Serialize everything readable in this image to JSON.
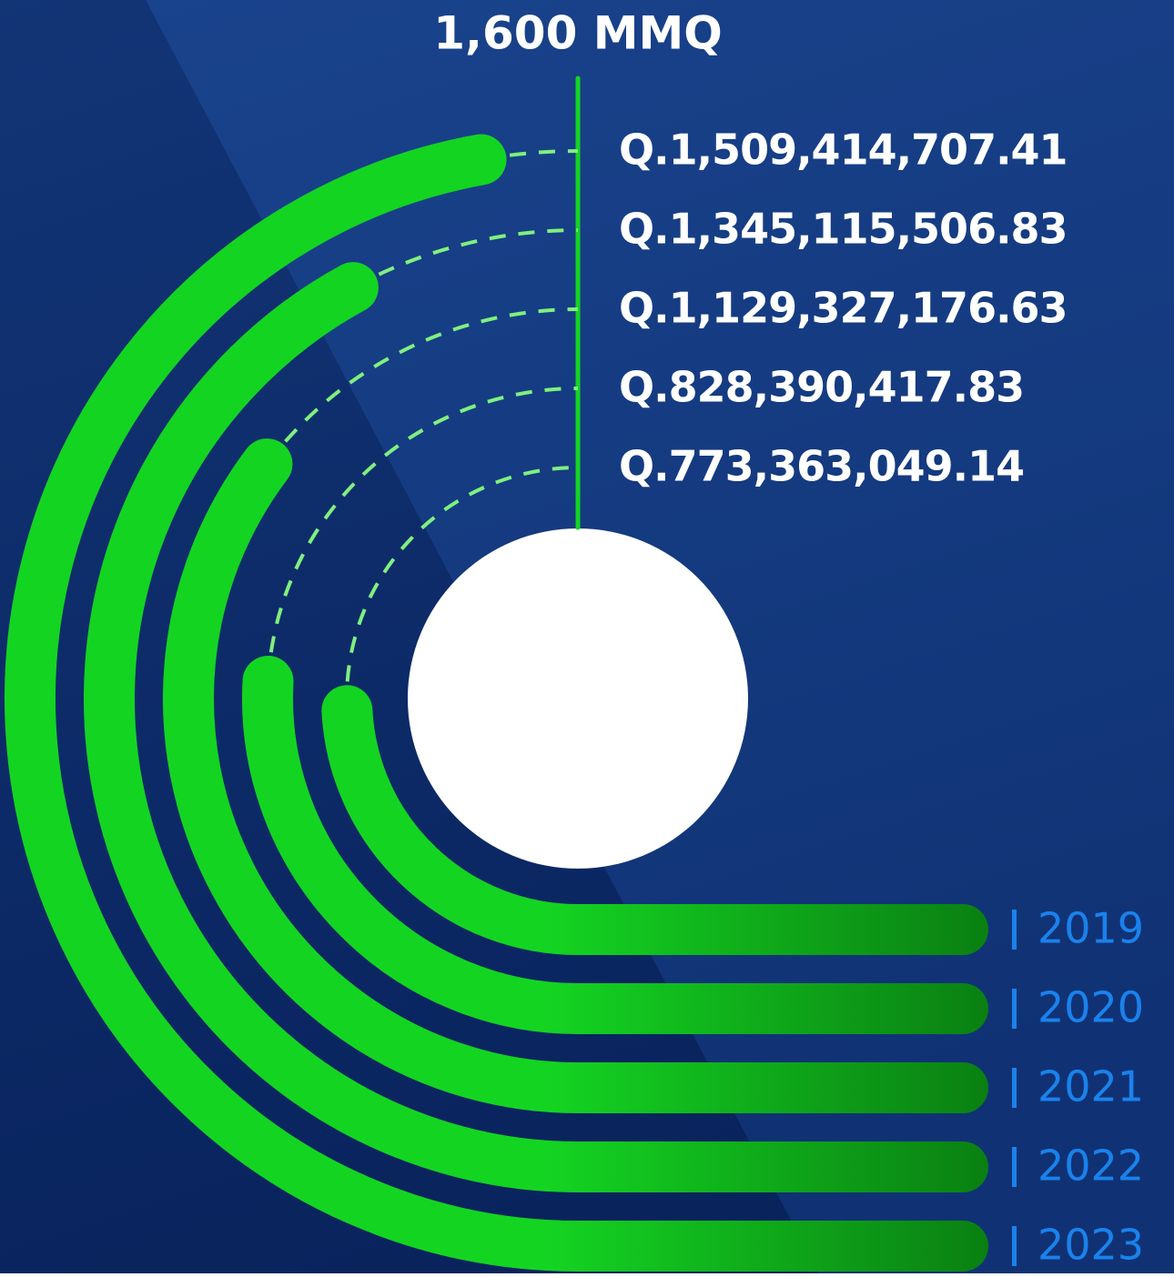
{
  "chart_data": {
    "type": "radial-bar",
    "categories": [
      "2019",
      "2020",
      "2021",
      "2022",
      "2023"
    ],
    "values": [
      773363049.14,
      828390417.83,
      1129327176.63,
      1345115506.83,
      1509414707.41
    ],
    "value_labels": [
      "Q.773,363,049.14",
      "Q.828,390,417.83",
      "Q.1,129,327,176.63",
      "Q.1,345,115,506.83",
      "Q.1,509,414,707.41"
    ],
    "ylim": [
      0,
      1600000000
    ],
    "yticks": [
      {
        "value": 1600000000,
        "label": "1,600 MMQ"
      }
    ],
    "color": "#14d422",
    "color_end": "#0a7f12",
    "label_color": "#1a82ec"
  }
}
